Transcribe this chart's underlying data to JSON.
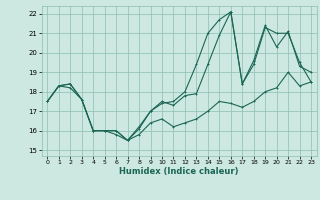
{
  "xlabel": "Humidex (Indice chaleur)",
  "ylabel": "",
  "xlim": [
    -0.5,
    23.5
  ],
  "ylim": [
    14.7,
    22.4
  ],
  "yticks": [
    15,
    16,
    17,
    18,
    19,
    20,
    21,
    22
  ],
  "xticks": [
    0,
    1,
    2,
    3,
    4,
    5,
    6,
    7,
    8,
    9,
    10,
    11,
    12,
    13,
    14,
    15,
    16,
    17,
    18,
    19,
    20,
    21,
    22,
    23
  ],
  "bg_color": "#cde8e0",
  "grid_color": "#8bbfb0",
  "line_color": "#1a6655",
  "line1_y": [
    17.5,
    18.3,
    18.4,
    17.6,
    16.0,
    16.0,
    16.0,
    15.5,
    15.8,
    16.4,
    16.6,
    16.2,
    16.4,
    16.6,
    17.0,
    17.5,
    17.4,
    17.2,
    17.5,
    18.0,
    18.2,
    19.0,
    18.3,
    18.5
  ],
  "line2_y": [
    17.5,
    18.3,
    18.4,
    17.6,
    16.0,
    16.0,
    16.0,
    15.5,
    16.1,
    17.0,
    17.5,
    17.3,
    17.8,
    17.9,
    19.4,
    20.9,
    22.1,
    18.4,
    19.6,
    21.4,
    20.3,
    21.1,
    19.3,
    19.0
  ],
  "line3_y": [
    17.5,
    18.3,
    18.2,
    17.6,
    16.0,
    16.0,
    15.8,
    15.5,
    16.2,
    17.0,
    17.4,
    17.5,
    18.0,
    19.4,
    21.0,
    21.7,
    22.1,
    18.4,
    19.4,
    21.3,
    21.0,
    21.0,
    19.5,
    18.5
  ]
}
